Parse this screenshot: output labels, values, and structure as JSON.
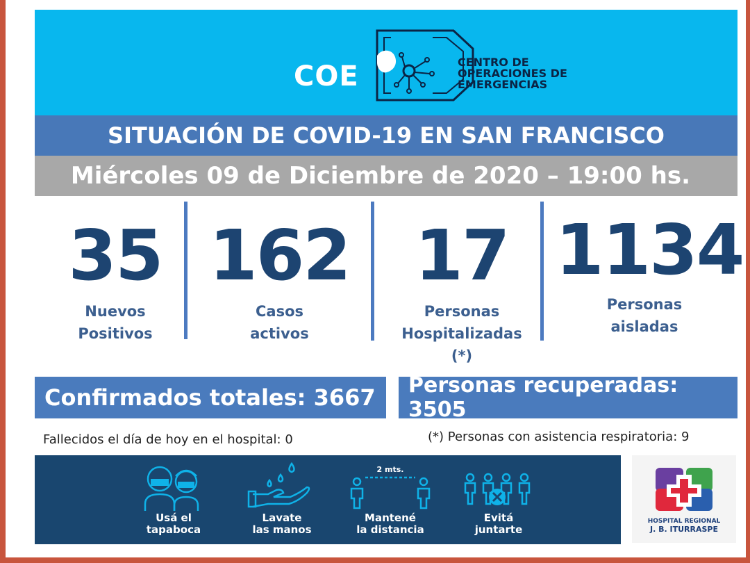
{
  "header": {
    "logo_text": "COE",
    "org_name_line1": "CENTRO DE",
    "org_name_line2": "OPERACIONES DE",
    "org_name_line3": "EMERGENCIAS"
  },
  "title": "SITUACIÓN DE COVID-19 EN SAN FRANCISCO",
  "date": "Miércoles 09 de Diciembre de 2020 – 19:00 hs.",
  "stats": [
    {
      "value": "35",
      "label": "Nuevos\nPositivos"
    },
    {
      "value": "162",
      "label": "Casos\nactivos"
    },
    {
      "value": "17",
      "label": "Personas\nHospitalizadas\n(*)"
    },
    {
      "value": "1134",
      "label": "Personas\naisladas"
    }
  ],
  "totals": {
    "confirmed": "Confirmados totales: 3667",
    "recovered": "Personas recuperadas: 3505"
  },
  "notes": {
    "deaths": "Fallecidos el día de hoy en el hospital: 0",
    "respiratory": "(*) Personas con asistencia respiratoria: 9"
  },
  "tips": [
    {
      "label": "Usá el\ntapaboca",
      "icon": "mask-people-icon"
    },
    {
      "label": "Lavate\nlas manos",
      "icon": "hand-wash-icon"
    },
    {
      "label": "Mantené\nla distancia",
      "icon": "distance-icon",
      "distance_text": "2 mts."
    },
    {
      "label": "Evitá\njuntarte",
      "icon": "no-gathering-icon"
    }
  ],
  "hospital": {
    "name_line1": "HOSPITAL REGIONAL",
    "name_line2": "J. B. ITURRASPE"
  },
  "colors": {
    "header_bg": "#08b7ee",
    "title_bg": "#4878b8",
    "date_bg": "#a8a8a8",
    "number_color": "#1d4471",
    "band_bg": "#19466f"
  }
}
